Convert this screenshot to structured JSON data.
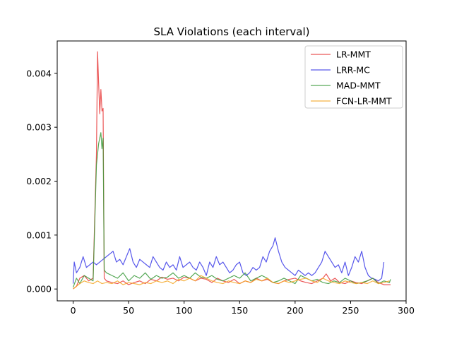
{
  "chart_data": {
    "type": "line",
    "title": "SLA Violations  (each interval)",
    "xlabel": "",
    "ylabel": "",
    "xlim": [
      -14.35,
      300
    ],
    "ylim": [
      -0.00022,
      0.0046
    ],
    "x_ticks": [
      0,
      50,
      100,
      150,
      200,
      250,
      300
    ],
    "y_ticks": [
      0.0,
      0.001,
      0.002,
      0.003,
      0.004
    ],
    "x_tick_labels": [
      "0",
      "50",
      "100",
      "150",
      "200",
      "250",
      "300"
    ],
    "y_tick_labels": [
      "0.000",
      "0.001",
      "0.002",
      "0.003",
      "0.004"
    ],
    "grid": false,
    "legend_position": "top-right",
    "series": [
      {
        "name": "LR-MMT",
        "color": "#e83a3a",
        "x": [
          0,
          3,
          6,
          10,
          14,
          18,
          21,
          22,
          23,
          24,
          25,
          26,
          27,
          28,
          30,
          35,
          40,
          45,
          50,
          55,
          60,
          65,
          70,
          75,
          80,
          85,
          90,
          95,
          100,
          105,
          110,
          115,
          120,
          125,
          130,
          135,
          140,
          145,
          150,
          155,
          160,
          165,
          170,
          175,
          180,
          185,
          190,
          195,
          200,
          205,
          210,
          215,
          220,
          225,
          228,
          232,
          236,
          240,
          245,
          250,
          255,
          260,
          265,
          270,
          275,
          280,
          286
        ],
        "y": [
          0.0,
          5e-05,
          0.0002,
          0.00025,
          0.00015,
          0.0002,
          0.0025,
          0.0044,
          0.0038,
          0.00325,
          0.0037,
          0.0033,
          0.00335,
          0.0002,
          0.00015,
          0.00012,
          0.0001,
          0.00015,
          8e-05,
          0.00012,
          0.00015,
          0.0001,
          0.00018,
          0.00015,
          0.00022,
          0.00018,
          0.0002,
          0.00015,
          0.00022,
          0.0002,
          0.00015,
          0.0002,
          0.00018,
          0.00012,
          0.0002,
          0.00015,
          0.00012,
          0.00018,
          0.0001,
          0.00015,
          0.00012,
          0.0002,
          0.00015,
          0.00018,
          0.00012,
          0.0001,
          0.00015,
          0.00018,
          0.0002,
          0.00015,
          0.00012,
          0.0001,
          0.00015,
          0.0002,
          0.00028,
          0.00015,
          0.0002,
          0.00012,
          0.0001,
          0.00015,
          0.00012,
          0.0001,
          0.00015,
          0.0002,
          0.00012,
          8e-05,
          8e-05
        ]
      },
      {
        "name": "LRR-MC",
        "color": "#3a3ae8",
        "x": [
          0,
          1,
          3,
          6,
          9,
          12,
          15,
          18,
          21,
          24,
          27,
          30,
          33,
          36,
          39,
          42,
          45,
          48,
          51,
          54,
          57,
          60,
          63,
          66,
          69,
          72,
          75,
          78,
          81,
          84,
          87,
          90,
          93,
          96,
          99,
          102,
          105,
          108,
          111,
          114,
          117,
          120,
          123,
          126,
          129,
          132,
          135,
          138,
          141,
          144,
          147,
          150,
          153,
          156,
          159,
          162,
          165,
          168,
          171,
          174,
          177,
          180,
          182,
          185,
          188,
          191,
          194,
          197,
          200,
          203,
          206,
          209,
          212,
          215,
          218,
          221,
          224,
          227,
          230,
          233,
          236,
          239,
          242,
          245,
          248,
          251,
          254,
          257,
          260,
          263,
          266,
          269,
          272,
          275,
          278,
          280
        ],
        "y": [
          0.0001,
          0.0005,
          0.0003,
          0.0004,
          0.0006,
          0.0004,
          0.00045,
          0.0005,
          0.00045,
          0.0005,
          0.00055,
          0.0006,
          0.00065,
          0.0007,
          0.0005,
          0.00055,
          0.00045,
          0.0006,
          0.00075,
          0.0005,
          0.0004,
          0.00055,
          0.0005,
          0.00045,
          0.0004,
          0.0006,
          0.0005,
          0.0004,
          0.00035,
          0.0005,
          0.0004,
          0.00045,
          0.00035,
          0.0006,
          0.0004,
          0.00045,
          0.0005,
          0.0004,
          0.00035,
          0.0005,
          0.0004,
          0.00025,
          0.0005,
          0.0004,
          0.0006,
          0.00045,
          0.0005,
          0.0004,
          0.0003,
          0.00035,
          0.00045,
          0.0005,
          0.0003,
          0.00025,
          0.0003,
          0.0004,
          0.00035,
          0.0004,
          0.0006,
          0.0005,
          0.0007,
          0.0008,
          0.00095,
          0.0007,
          0.0005,
          0.0004,
          0.00035,
          0.0003,
          0.00025,
          0.00035,
          0.0003,
          0.00025,
          0.0003,
          0.00025,
          0.0003,
          0.0004,
          0.0005,
          0.0007,
          0.0006,
          0.0005,
          0.0004,
          0.00045,
          0.0003,
          0.0005,
          0.00025,
          0.0004,
          0.0006,
          0.0005,
          0.0007,
          0.0004,
          0.00025,
          0.0002,
          0.00018,
          0.00015,
          0.0002,
          0.0005
        ]
      },
      {
        "name": "MAD-MMT",
        "color": "#3a9a3a",
        "x": [
          0,
          3,
          6,
          10,
          14,
          18,
          21,
          22,
          23,
          24,
          25,
          26,
          27,
          28,
          30,
          35,
          40,
          45,
          50,
          55,
          60,
          65,
          70,
          75,
          80,
          85,
          90,
          95,
          100,
          105,
          110,
          115,
          120,
          125,
          130,
          135,
          140,
          145,
          150,
          155,
          160,
          165,
          170,
          175,
          180,
          185,
          190,
          195,
          200,
          205,
          210,
          215,
          220,
          225,
          230,
          235,
          240,
          245,
          250,
          255,
          260,
          265,
          270,
          275,
          280,
          285,
          286
        ],
        "y": [
          3e-05,
          0.0002,
          0.0001,
          0.00025,
          0.0002,
          0.00015,
          0.0023,
          0.0025,
          0.0027,
          0.0028,
          0.0029,
          0.0026,
          0.0028,
          0.00035,
          0.0003,
          0.00025,
          0.0002,
          0.0003,
          0.00015,
          0.00025,
          0.0002,
          0.0003,
          0.00018,
          0.00025,
          0.0002,
          0.00022,
          0.0003,
          0.0002,
          0.00025,
          0.0002,
          0.0003,
          0.00022,
          0.0002,
          0.00025,
          0.00018,
          0.00015,
          0.0002,
          0.00025,
          0.0002,
          0.0003,
          0.00015,
          0.0002,
          0.00025,
          0.0002,
          0.00012,
          0.00015,
          0.0002,
          0.00015,
          0.0001,
          0.00025,
          0.0002,
          0.00015,
          0.00018,
          0.00012,
          0.0001,
          0.00015,
          0.00012,
          0.0002,
          0.00015,
          0.0001,
          0.00012,
          0.00015,
          0.0002,
          0.0001,
          0.00015,
          0.00012,
          0.00018
        ]
      },
      {
        "name": "FCN-LR-MMT",
        "color": "#f5a623",
        "x": [
          0,
          3,
          6,
          10,
          14,
          18,
          22,
          26,
          30,
          35,
          40,
          45,
          50,
          55,
          60,
          65,
          70,
          75,
          80,
          85,
          90,
          95,
          100,
          105,
          110,
          115,
          120,
          125,
          130,
          135,
          140,
          145,
          150,
          155,
          160,
          165,
          170,
          175,
          180,
          185,
          190,
          195,
          200,
          205,
          210,
          215,
          220,
          225,
          230,
          235,
          240,
          245,
          250,
          255,
          260,
          265,
          270,
          275,
          280,
          285
        ],
        "y": [
          0.0,
          5e-05,
          0.0001,
          0.00015,
          0.00012,
          0.0001,
          0.00015,
          0.0001,
          0.00012,
          0.0001,
          0.00015,
          8e-05,
          0.00012,
          0.0001,
          8e-05,
          0.00012,
          0.0001,
          0.00015,
          0.00012,
          0.00015,
          0.0001,
          0.00018,
          0.00015,
          0.0002,
          0.00015,
          0.00025,
          0.0002,
          0.00015,
          0.00012,
          0.0001,
          0.00015,
          0.00012,
          0.0001,
          0.00015,
          0.00012,
          0.00018,
          0.00015,
          0.0002,
          0.00012,
          0.0001,
          0.00015,
          0.00012,
          0.00015,
          0.00018,
          0.0002,
          0.00015,
          0.00012,
          0.0002,
          0.00015,
          0.00012,
          0.0001,
          0.00015,
          0.00012,
          0.0001,
          0.00012,
          0.0001,
          0.00015,
          0.0001,
          0.00012,
          0.00015
        ]
      }
    ]
  }
}
